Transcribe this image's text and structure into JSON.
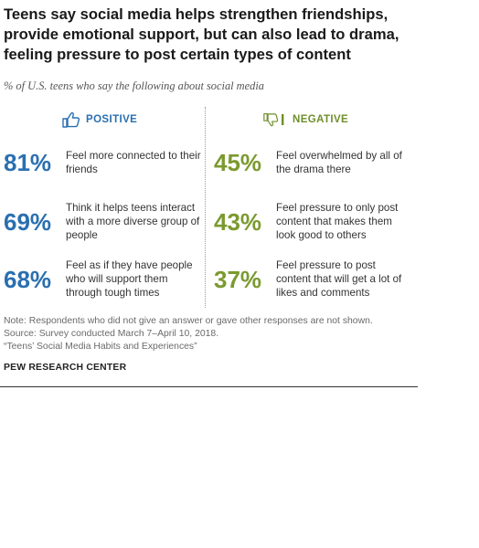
{
  "title": "Teens say social media helps strengthen friendships, provide emotional support, but can also lead to drama, feeling pressure to post certain types of content",
  "subtitle": "% of U.S. teens who say the following about social media",
  "positive_header": "POSITIVE",
  "negative_header": "NEGATIVE",
  "positive_icon": "thumbs-up-icon",
  "negative_icon": "thumbs-down-icon",
  "colors": {
    "positive": "#2a6fb0",
    "negative": "#7b9a2f"
  },
  "chart_data": {
    "type": "table",
    "title": "Teens say social media helps strengthen friendships, provide emotional support, but can also lead to drama, feeling pressure to post certain types of content",
    "subtitle": "% of U.S. teens who say the following about social media",
    "groups": [
      {
        "name": "POSITIVE",
        "items": [
          {
            "value": "81%",
            "label": "Feel more connected to their friends"
          },
          {
            "value": "69%",
            "label": "Think it helps teens interact with a more diverse group of people"
          },
          {
            "value": "68%",
            "label": "Feel as if they have people who will support them through tough times"
          }
        ]
      },
      {
        "name": "NEGATIVE",
        "items": [
          {
            "value": "45%",
            "label": "Feel overwhelmed by all of the drama there"
          },
          {
            "value": "43%",
            "label": "Feel pressure to only post content that makes them look good to others"
          },
          {
            "value": "37%",
            "label": "Feel pressure to post content that will get a lot of likes and comments"
          }
        ]
      }
    ]
  },
  "notes": {
    "note": "Note: Respondents who did not give an answer or gave other responses are not shown.",
    "source": "Source: Survey conducted March 7–April 10, 2018.",
    "report": "“Teens’ Social Media Habits and Experiences”"
  },
  "brand": "PEW RESEARCH CENTER"
}
